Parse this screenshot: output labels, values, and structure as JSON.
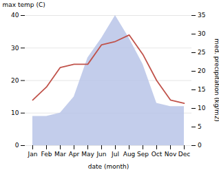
{
  "chart_data": {
    "type": "line",
    "xlabel": "date (month)",
    "ylabel": "max temp (C)",
    "y2label": "med. precipitation (kg/m2)",
    "categories": [
      "Jan",
      "Feb",
      "Mar",
      "Apr",
      "May",
      "Jun",
      "Jul",
      "Aug",
      "Sep",
      "Oct",
      "Nov",
      "Dec"
    ],
    "series": [
      {
        "type": "area",
        "color": "#b8c4e8",
        "values": [
          9,
          9,
          10,
          15,
          27,
          33,
          40,
          33,
          25,
          13,
          12,
          12
        ]
      },
      {
        "type": "line",
        "color": "#c0524a",
        "values": [
          14,
          18,
          24,
          25,
          25,
          31,
          32,
          34,
          28,
          20,
          14,
          13
        ]
      }
    ],
    "ylim": [
      0,
      40
    ],
    "yticks": [
      0,
      10,
      20,
      30,
      40
    ],
    "y2lim": [
      0,
      35
    ],
    "y2ticks": [
      0,
      5,
      10,
      15,
      20,
      25,
      30,
      35
    ],
    "grid": true
  }
}
